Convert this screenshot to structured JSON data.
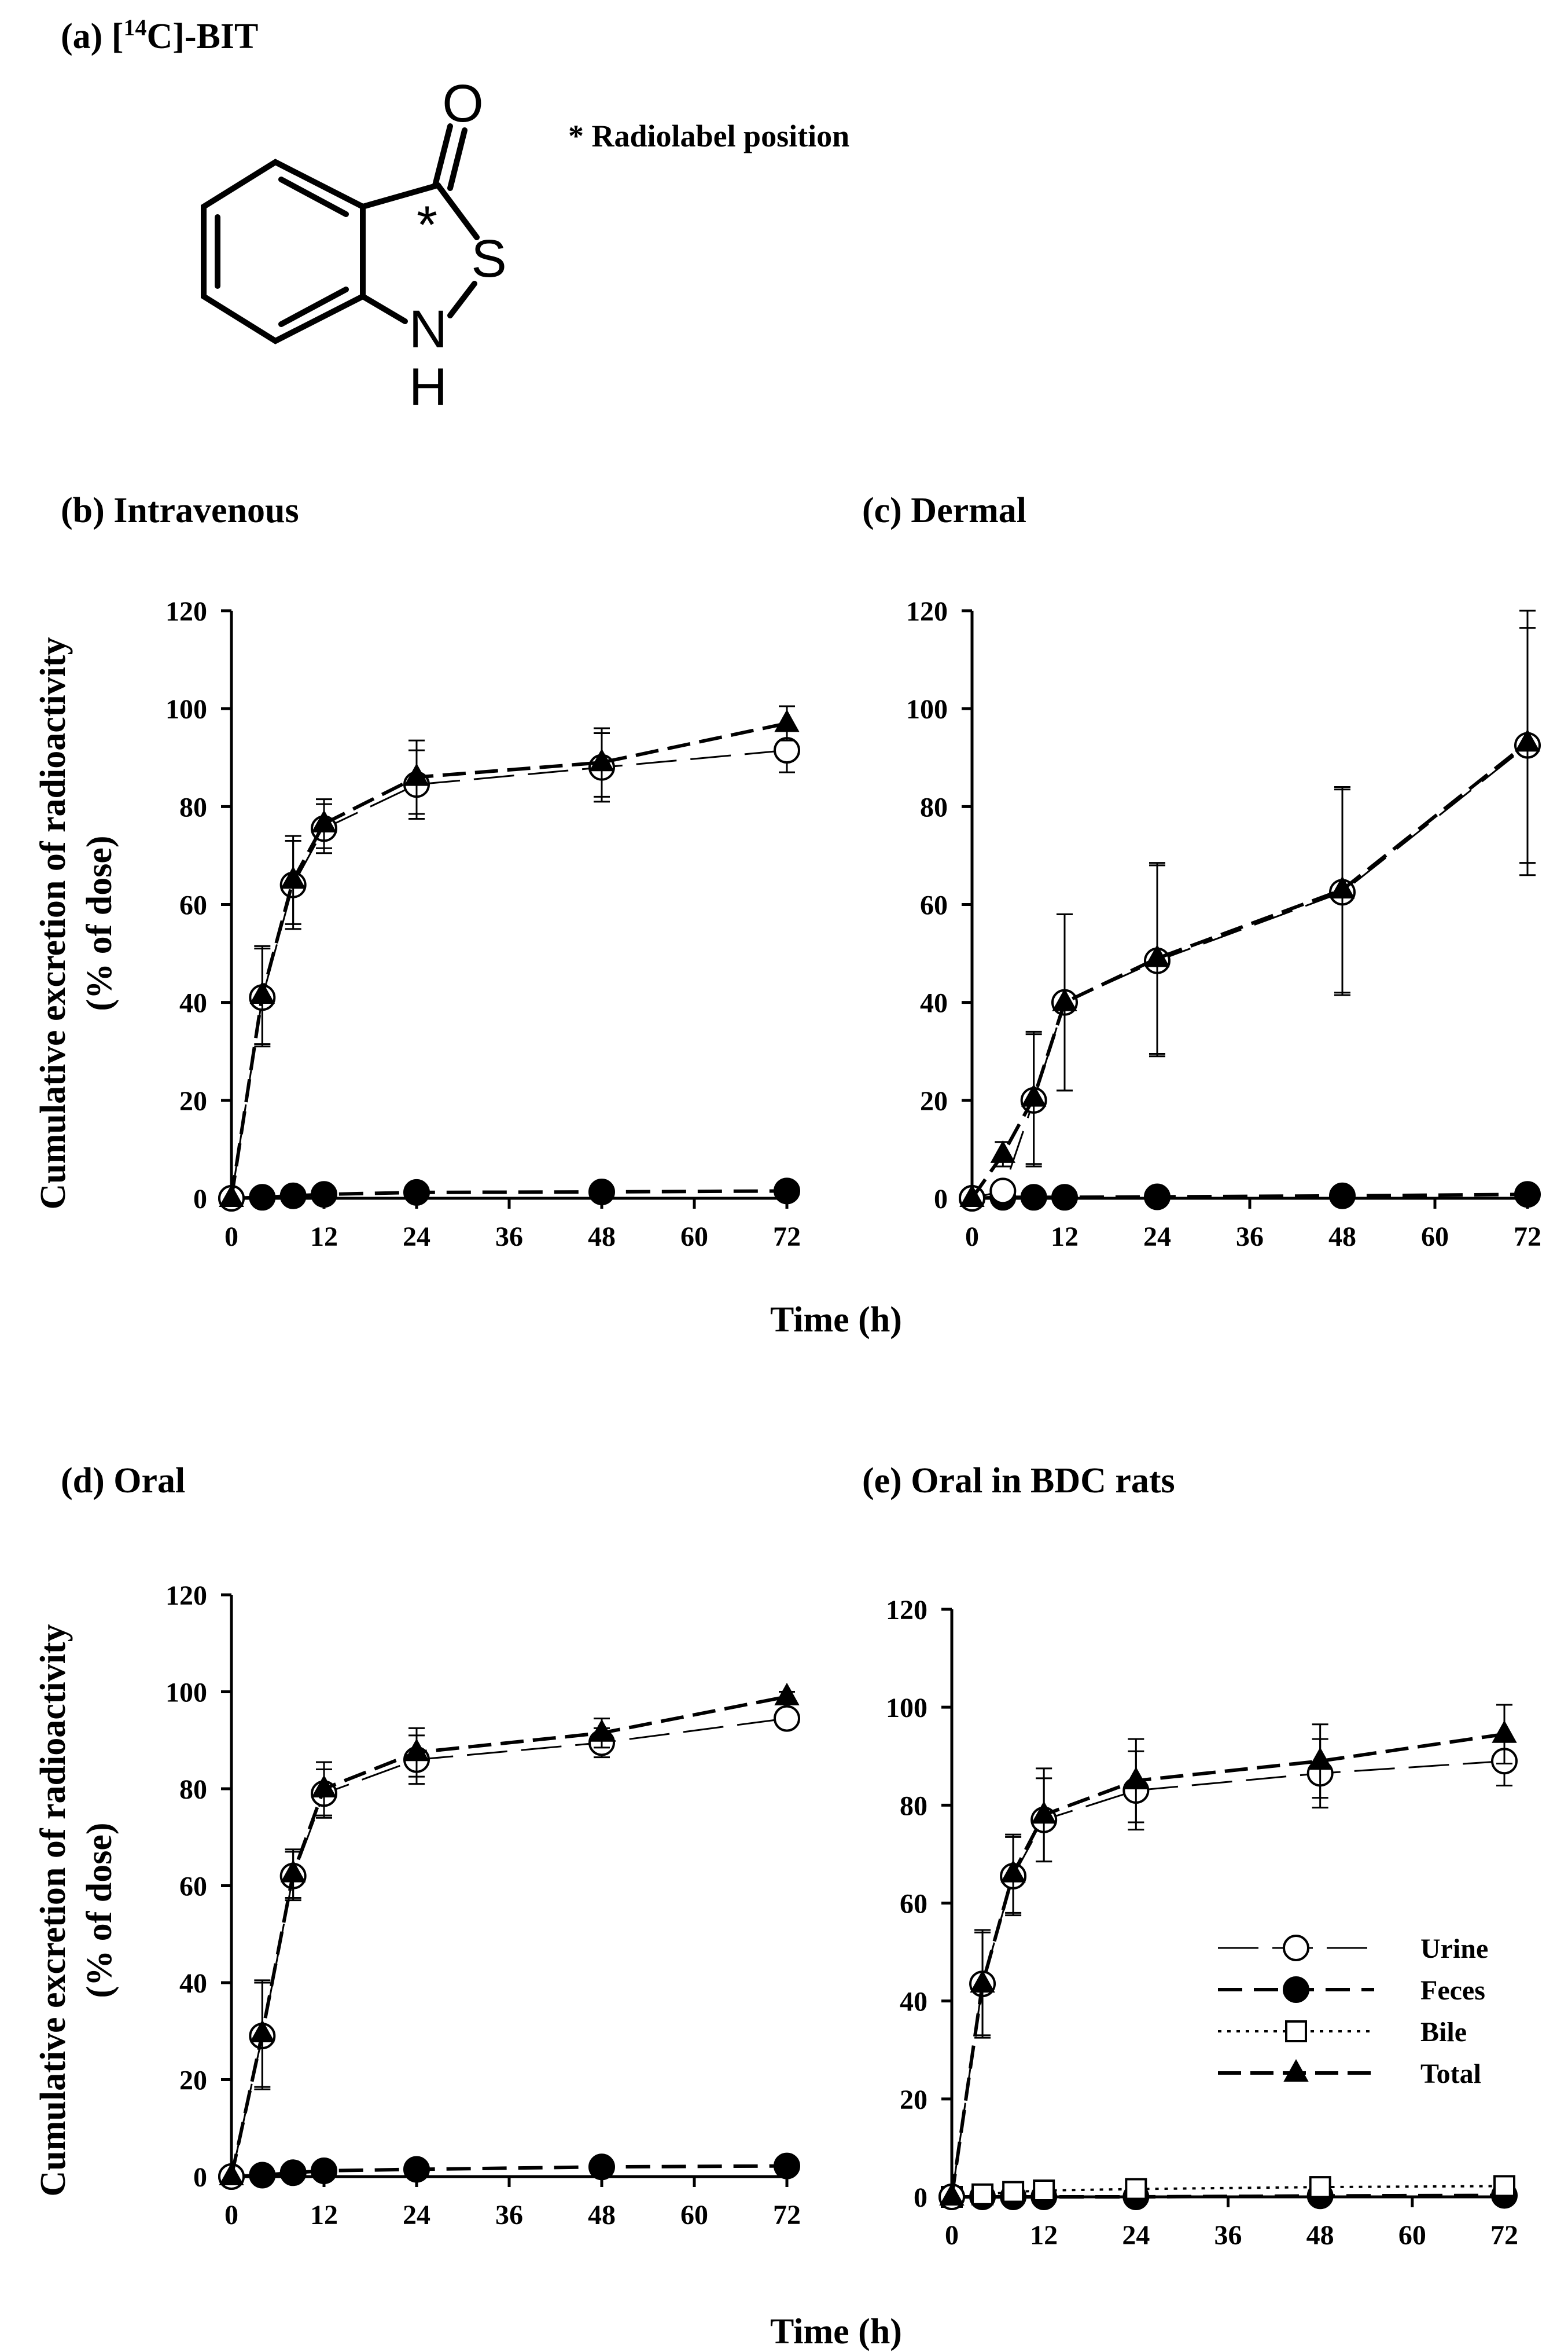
{
  "structure": {
    "title_prefix": "(a) [",
    "title_sup": "14",
    "title_suffix": "C]-BIT",
    "atoms": {
      "oxygen": "O",
      "sulfur": "S",
      "nitrogen": "N",
      "hydrogen": "H",
      "label_mark": "*"
    },
    "note": "* Radiolabel position"
  },
  "shared": {
    "ylabel_line1": "Cumulative excretion of radioactivity",
    "ylabel_line2": "(% of dose)",
    "xlabel": "Time (h)"
  },
  "legend": {
    "entries": [
      {
        "key": "urine",
        "label": "Urine"
      },
      {
        "key": "feces",
        "label": "Feces"
      },
      {
        "key": "bile",
        "label": "Bile"
      },
      {
        "key": "total",
        "label": "Total"
      }
    ]
  },
  "chart_data": [
    {
      "id": "b",
      "type": "line",
      "title": "(b) Intravenous",
      "xlabel": "",
      "ylabel": "Cumulative excretion of radioactivity (% of dose)",
      "xlim": [
        0,
        72
      ],
      "ylim": [
        0,
        120
      ],
      "xticks": [
        0,
        12,
        24,
        36,
        48,
        60,
        72
      ],
      "yticks": [
        0,
        20,
        40,
        60,
        80,
        100,
        120
      ],
      "x": [
        0,
        4,
        8,
        12,
        24,
        48,
        72
      ],
      "series": [
        {
          "name": "Urine",
          "key": "urine",
          "values": [
            0,
            41,
            64,
            75.5,
            84.5,
            88,
            91.5
          ],
          "errors": [
            0,
            10,
            9,
            5,
            7,
            7,
            4.5
          ]
        },
        {
          "name": "Feces",
          "key": "feces",
          "values": [
            0,
            0.2,
            0.5,
            0.8,
            1.2,
            1.3,
            1.5
          ]
        },
        {
          "name": "Total",
          "key": "total",
          "values": [
            0,
            41.5,
            65,
            76.5,
            86,
            89,
            97
          ],
          "errors": [
            0,
            10,
            9,
            5,
            7.5,
            7,
            3.5
          ]
        }
      ]
    },
    {
      "id": "c",
      "type": "line",
      "title": "(c) Dermal",
      "xlabel": "Time (h)",
      "ylabel": "",
      "xlim": [
        0,
        72
      ],
      "ylim": [
        0,
        120
      ],
      "xticks": [
        0,
        12,
        24,
        36,
        48,
        60,
        72
      ],
      "yticks": [
        0,
        20,
        40,
        60,
        80,
        100,
        120
      ],
      "x": [
        0,
        4,
        8,
        12,
        24,
        48,
        72
      ],
      "series": [
        {
          "name": "Urine",
          "key": "urine",
          "values": [
            0,
            1.5,
            20,
            40,
            48.5,
            62.5,
            92.5
          ],
          "errors": [
            0,
            1,
            13.5,
            18,
            19.5,
            21,
            24
          ]
        },
        {
          "name": "Feces",
          "key": "feces",
          "values": [
            0,
            0.2,
            0.2,
            0.2,
            0.3,
            0.5,
            0.8
          ]
        },
        {
          "name": "Total",
          "key": "total",
          "values": [
            0,
            9,
            20.5,
            40,
            49,
            63,
            93
          ],
          "errors": [
            0,
            2.5,
            13.5,
            18,
            19.5,
            21,
            27
          ]
        }
      ]
    },
    {
      "id": "d",
      "type": "line",
      "title": "(d) Oral",
      "xlabel": "",
      "ylabel": "Cumulative excretion of radioactivity (% of dose)",
      "xlim": [
        0,
        72
      ],
      "ylim": [
        0,
        120
      ],
      "xticks": [
        0,
        12,
        24,
        36,
        48,
        60,
        72
      ],
      "yticks": [
        0,
        20,
        40,
        60,
        80,
        100,
        120
      ],
      "x": [
        0,
        4,
        8,
        12,
        24,
        48,
        72
      ],
      "series": [
        {
          "name": "Urine",
          "key": "urine",
          "values": [
            0,
            29,
            62,
            79,
            86,
            89.5,
            94.5
          ],
          "errors": [
            0,
            11,
            5,
            5,
            5,
            3,
            1.5
          ]
        },
        {
          "name": "Feces",
          "key": "feces",
          "values": [
            0,
            0.3,
            0.8,
            1.2,
            1.5,
            2,
            2.2
          ]
        },
        {
          "name": "Total",
          "key": "total",
          "values": [
            0,
            29.5,
            62.5,
            80,
            87.5,
            91.5,
            99
          ],
          "errors": [
            0,
            11,
            5,
            5.5,
            5,
            3,
            1
          ]
        }
      ]
    },
    {
      "id": "e",
      "type": "line",
      "title": "(e) Oral in BDC rats",
      "xlabel": "Time (h)",
      "ylabel": "",
      "xlim": [
        0,
        72
      ],
      "ylim": [
        0,
        120
      ],
      "xticks": [
        0,
        12,
        24,
        36,
        48,
        60,
        72
      ],
      "yticks": [
        0,
        20,
        40,
        60,
        80,
        100,
        120
      ],
      "legend_position": "right",
      "x": [
        0,
        4,
        8,
        12,
        24,
        48,
        72
      ],
      "series": [
        {
          "name": "Urine",
          "key": "urine",
          "values": [
            0,
            43.5,
            65.5,
            77,
            83,
            86.5,
            89
          ],
          "errors": [
            0,
            10.5,
            8,
            8.5,
            8,
            7,
            5
          ]
        },
        {
          "name": "Feces",
          "key": "feces",
          "values": [
            0,
            0,
            0,
            0,
            0,
            0.2,
            0.3
          ]
        },
        {
          "name": "Bile",
          "key": "bile",
          "values": [
            0,
            0.5,
            1,
            1.3,
            1.6,
            2,
            2.2
          ]
        },
        {
          "name": "Total",
          "key": "total",
          "values": [
            0,
            43.5,
            66,
            78,
            85,
            89,
            94.5
          ],
          "errors": [
            0,
            11,
            8,
            9.5,
            8.5,
            7.5,
            6
          ]
        }
      ]
    }
  ]
}
